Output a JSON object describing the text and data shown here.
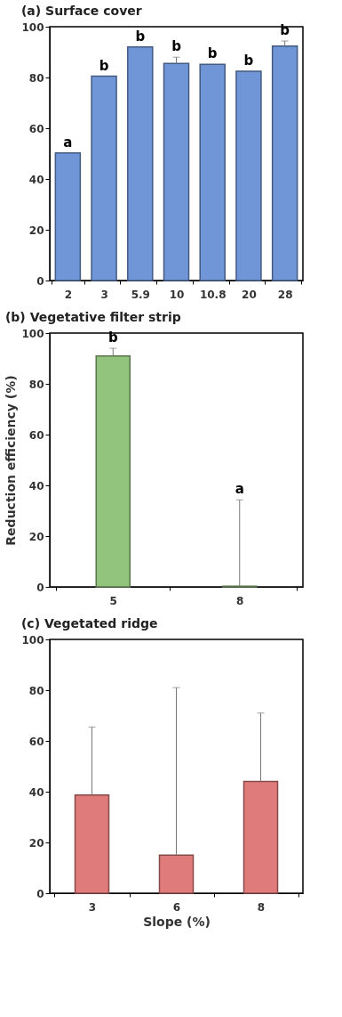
{
  "chart_data": [
    {
      "type": "bar",
      "title": "(a) Surface cover",
      "categories": [
        "2",
        "3",
        "5.9",
        "10",
        "10.8",
        "20",
        "28"
      ],
      "series": [
        {
          "color": "#7096d8",
          "values": [
            50.3,
            80.5,
            92,
            85.5,
            85.2,
            82.5,
            92.4
          ],
          "errors": [
            null,
            null,
            null,
            [
              85.5,
              88
            ],
            null,
            null,
            [
              92.4,
              94.4
            ]
          ]
        }
      ],
      "ylim": [
        0,
        100
      ],
      "yticks": [
        0,
        20,
        40,
        60,
        80,
        100
      ],
      "grid": false,
      "annotations": [
        {
          "text": "a",
          "x": "2",
          "y": 50.3
        },
        {
          "text": "b",
          "x": "3",
          "y": 80.5
        },
        {
          "text": "b",
          "x": "5.9",
          "y": 92
        },
        {
          "text": "b",
          "x": "10",
          "y": 88
        },
        {
          "text": "b",
          "x": "10.8",
          "y": 85.2
        },
        {
          "text": "b",
          "x": "20",
          "y": 82.5
        },
        {
          "text": "b",
          "x": "28",
          "y": 94.4
        }
      ]
    },
    {
      "type": "bar",
      "title": "(b) Vegetative filter strip",
      "ylabel": "Reduction efficiency (%)",
      "categories": [
        "5",
        "8"
      ],
      "series": [
        {
          "color": "#93c47d",
          "values": [
            91,
            0.3
          ],
          "errors": [
            [
              91,
              94
            ],
            [
              0.3,
              34.3
            ]
          ]
        }
      ],
      "ylim": [
        0,
        100
      ],
      "yticks": [
        0,
        20,
        40,
        60,
        80,
        100
      ],
      "grid": false,
      "annotations": [
        {
          "text": "b",
          "x": "5",
          "y": 94
        },
        {
          "text": "a",
          "x": "8",
          "y": 34.3
        }
      ]
    },
    {
      "type": "bar",
      "title": "(c) Vegetated ridge",
      "xlabel": "Slope (%)",
      "categories": [
        "3",
        "6",
        "8"
      ],
      "series": [
        {
          "color": "#e07b7b",
          "values": [
            38.7,
            15,
            44
          ],
          "errors": [
            [
              38.7,
              65.5
            ],
            [
              15,
              81
            ],
            [
              44,
              71
            ]
          ]
        }
      ],
      "ylim": [
        0,
        100
      ],
      "yticks": [
        0,
        20,
        40,
        60,
        80,
        100
      ],
      "grid": false
    }
  ]
}
